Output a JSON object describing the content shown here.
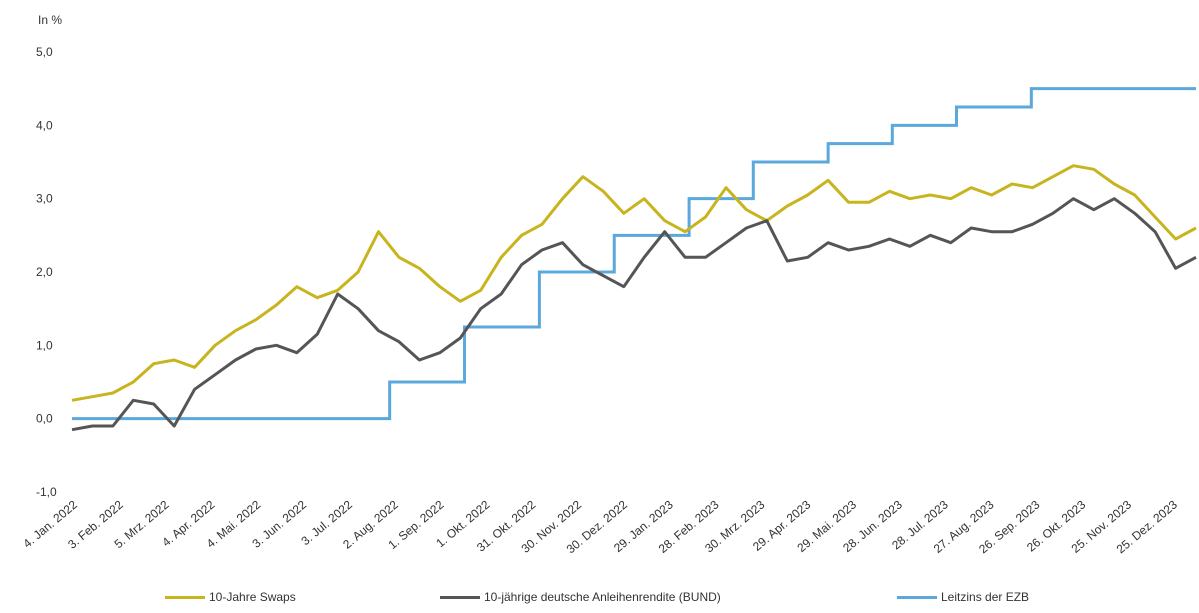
{
  "chart_data": {
    "type": "line",
    "unit_label": "In %",
    "ylim": [
      -1.0,
      5.0
    ],
    "yticks": [
      "5,0",
      "4,0",
      "3,0",
      "2,0",
      "1,0",
      "0,0",
      "-1,0"
    ],
    "ytick_values": [
      5,
      4,
      3,
      2,
      1,
      0,
      -1
    ],
    "x_tick_labels": [
      "4. Jan. 2022",
      "3. Feb. 2022",
      "5. Mrz. 2022",
      "4. Apr. 2022",
      "4. Mai. 2022",
      "3. Jun. 2022",
      "3. Jul. 2022",
      "2. Aug. 2022",
      "1. Sep. 2022",
      "1. Okt. 2022",
      "31. Okt. 2022",
      "30. Nov. 2022",
      "30. Dez. 2022",
      "29. Jan. 2023",
      "28. Feb. 2023",
      "30. Mrz. 2023",
      "29. Apr. 2023",
      "29. Mai. 2023",
      "28. Jun. 2023",
      "28. Jul. 2023",
      "27. Aug. 2023",
      "26. Sep. 2023",
      "26. Okt. 2023",
      "25. Nov. 2023",
      "25. Dez. 2023"
    ],
    "grid": false,
    "legend_position": "bottom",
    "series": [
      {
        "name": "10-Jahre Swaps",
        "color": "#c8b41e",
        "values": [
          0.25,
          0.3,
          0.35,
          0.5,
          0.75,
          0.8,
          0.7,
          1.0,
          1.2,
          1.35,
          1.55,
          1.8,
          1.65,
          1.75,
          2.0,
          2.55,
          2.2,
          2.05,
          1.8,
          1.6,
          1.75,
          2.2,
          2.5,
          2.65,
          3.0,
          3.3,
          3.1,
          2.8,
          3.0,
          2.7,
          2.55,
          2.75,
          3.15,
          2.85,
          2.7,
          2.9,
          3.05,
          3.25,
          2.95,
          2.95,
          3.1,
          3.0,
          3.05,
          3.0,
          3.15,
          3.05,
          3.2,
          3.15,
          3.3,
          3.45,
          3.4,
          3.2,
          3.05,
          2.75,
          2.45,
          2.6
        ]
      },
      {
        "name": "10-jährige deutsche Anleihenrendite (BUND)",
        "color": "#555555",
        "values": [
          -0.15,
          -0.1,
          -0.1,
          0.25,
          0.2,
          -0.1,
          0.4,
          0.6,
          0.8,
          0.95,
          1.0,
          0.9,
          1.15,
          1.7,
          1.5,
          1.2,
          1.05,
          0.8,
          0.9,
          1.1,
          1.5,
          1.7,
          2.1,
          2.3,
          2.4,
          2.1,
          1.95,
          1.8,
          2.2,
          2.55,
          2.2,
          2.2,
          2.4,
          2.6,
          2.7,
          2.15,
          2.2,
          2.4,
          2.3,
          2.35,
          2.45,
          2.35,
          2.5,
          2.4,
          2.6,
          2.55,
          2.55,
          2.65,
          2.8,
          3.0,
          2.85,
          3.0,
          2.8,
          2.55,
          2.05,
          2.2
        ]
      },
      {
        "name": "Leitzins der EZB",
        "color": "#5aa8dc",
        "type": "step",
        "steps": [
          {
            "from": "4. Jan. 2022",
            "value": 0.0
          },
          {
            "from": "27. Jul. 2022",
            "value": 0.5
          },
          {
            "from": "14. Sep. 2022",
            "value": 1.25
          },
          {
            "from": "2. Nov. 2022",
            "value": 2.0
          },
          {
            "from": "21. Dez. 2022",
            "value": 2.5
          },
          {
            "from": "8. Feb. 2023",
            "value": 3.0
          },
          {
            "from": "22. Mrz. 2023",
            "value": 3.5
          },
          {
            "from": "10. Mai. 2023",
            "value": 3.75
          },
          {
            "from": "21. Jun. 2023",
            "value": 4.0
          },
          {
            "from": "2. Aug. 2023",
            "value": 4.25
          },
          {
            "from": "20. Sep. 2023",
            "value": 4.5
          }
        ]
      }
    ]
  }
}
